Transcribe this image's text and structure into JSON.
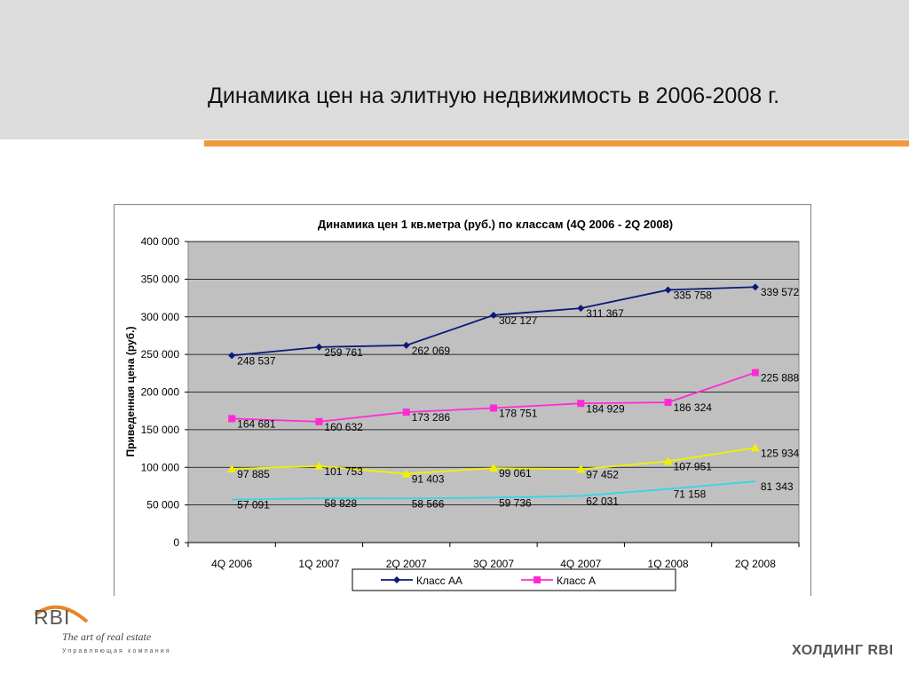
{
  "slide": {
    "title": "Динамика цен на элитную недвижимость в 2006-2008 г."
  },
  "brand": {
    "logo_text": "RBI",
    "tagline": "The art of real estate",
    "subtitle": "Управляющая компания",
    "holding": "ХОЛДИНГ RBI"
  },
  "colors": {
    "band": "#dcdcdc",
    "accent": "#f29a3a",
    "plot_bg": "#c0c0c0"
  },
  "chart_data": {
    "type": "line",
    "title": "Динамика цен 1 кв.метра (руб.)  по классам (4Q 2006 - 2Q 2008)",
    "ylabel": "Приведенная цена (руб.)",
    "xlabel": "",
    "ylim": [
      0,
      400000
    ],
    "yticks": [
      0,
      50000,
      100000,
      150000,
      200000,
      250000,
      300000,
      350000,
      400000
    ],
    "ytick_labels": [
      "0",
      "50 000",
      "100 000",
      "150 000",
      "200 000",
      "250 000",
      "300 000",
      "350 000",
      "400 000"
    ],
    "grid": true,
    "legend": "bottom",
    "categories": [
      "4Q 2006",
      "1Q 2007",
      "2Q 2007",
      "3Q 2007",
      "4Q 2007",
      "1Q 2008",
      "2Q 2008"
    ],
    "series": [
      {
        "name": "Класс AA",
        "color": "#0a1a7a",
        "marker": "diamond",
        "values": [
          248537,
          259761,
          262069,
          302127,
          311367,
          335758,
          339572
        ],
        "labels": [
          "248 537",
          "259 761",
          "262 069",
          "302 127",
          "311 367",
          "335 758",
          "339 572"
        ]
      },
      {
        "name": "Класс A",
        "color": "#ff2ad4",
        "marker": "square",
        "values": [
          164681,
          160632,
          173286,
          178751,
          184929,
          186324,
          225888
        ],
        "labels": [
          "164 681",
          "160 632",
          "173 286",
          "178 751",
          "184 929",
          "186 324",
          "225 888"
        ]
      },
      {
        "color": "#f2f200",
        "marker": "triangle",
        "values": [
          97885,
          101753,
          91403,
          99061,
          97452,
          107951,
          125934
        ],
        "labels": [
          "97 885",
          "101 753",
          "91 403",
          "99 061",
          "97 452",
          "107 951",
          "125 934"
        ]
      },
      {
        "color": "#33d6e6",
        "marker": "none",
        "values": [
          57091,
          58828,
          58566,
          59736,
          62031,
          71158,
          81343
        ],
        "labels": [
          "57 091",
          "58 828",
          "58 566",
          "59 736",
          "62 031",
          "71 158",
          "81 343"
        ]
      }
    ]
  }
}
